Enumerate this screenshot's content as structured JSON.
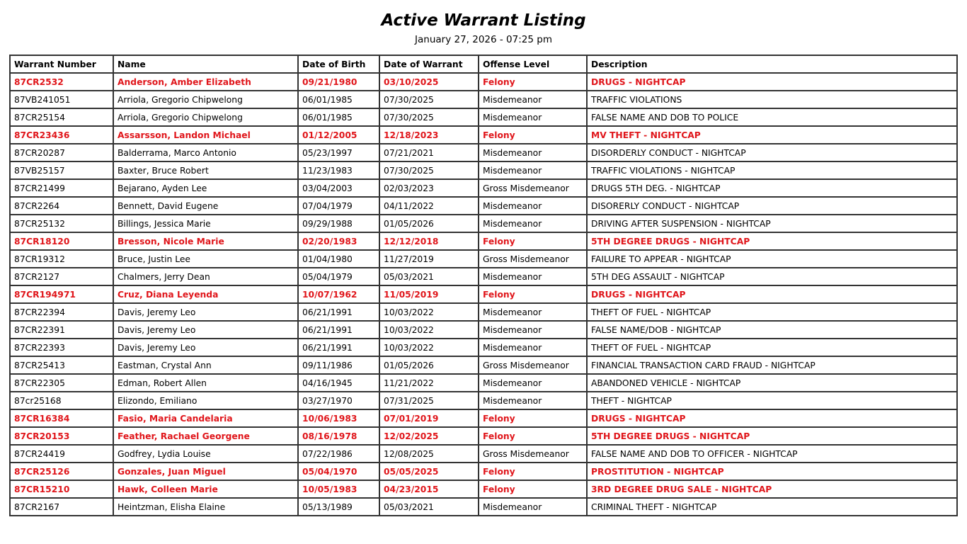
{
  "title": "Active Warrant Listing",
  "subtitle": "January 27, 2026 - 07:25 pm",
  "columns": [
    "Warrant Number",
    "Name",
    "Date of Birth",
    "Date of Warrant",
    "Offense Level",
    "Description"
  ],
  "highlight_color": "#e0161b",
  "rows": [
    [
      "87CR2532",
      "Anderson, Amber Elizabeth",
      "09/21/1980",
      "03/10/2025",
      "Felony",
      "DRUGS - NIGHTCAP"
    ],
    [
      "87VB241051",
      "Arriola, Gregorio Chipwelong",
      "06/01/1985",
      "07/30/2025",
      "Misdemeanor",
      "TRAFFIC VIOLATIONS"
    ],
    [
      "87CR25154",
      "Arriola, Gregorio Chipwelong",
      "06/01/1985",
      "07/30/2025",
      "Misdemeanor",
      "FALSE NAME AND DOB TO POLICE"
    ],
    [
      "87CR23436",
      "Assarsson, Landon Michael",
      "01/12/2005",
      "12/18/2023",
      "Felony",
      "MV THEFT - NIGHTCAP"
    ],
    [
      "87CR20287",
      "Balderrama, Marco Antonio",
      "05/23/1997",
      "07/21/2021",
      "Misdemeanor",
      "DISORDERLY CONDUCT - NIGHTCAP"
    ],
    [
      "87VB25157",
      "Baxter, Bruce Robert",
      "11/23/1983",
      "07/30/2025",
      "Misdemeanor",
      "TRAFFIC VIOLATIONS - NIGHTCAP"
    ],
    [
      "87CR21499",
      "Bejarano, Ayden Lee",
      "03/04/2003",
      "02/03/2023",
      "Gross Misdemeanor",
      "DRUGS 5TH DEG. - NIGHTCAP"
    ],
    [
      "87CR2264",
      "Bennett, David Eugene",
      "07/04/1979",
      "04/11/2022",
      "Misdemeanor",
      "DISORERLY CONDUCT - NIGHTCAP"
    ],
    [
      "87CR25132",
      "Billings, Jessica Marie",
      "09/29/1988",
      "01/05/2026",
      "Misdemeanor",
      "DRIVING AFTER SUSPENSION - NIGHTCAP"
    ],
    [
      "87CR18120",
      "Bresson, Nicole Marie",
      "02/20/1983",
      "12/12/2018",
      "Felony",
      "5TH DEGREE DRUGS - NIGHTCAP"
    ],
    [
      "87CR19312",
      "Bruce, Justin Lee",
      "01/04/1980",
      "11/27/2019",
      "Gross Misdemeanor",
      "FAILURE TO APPEAR - NIGHTCAP"
    ],
    [
      "87CR2127",
      "Chalmers, Jerry Dean",
      "05/04/1979",
      "05/03/2021",
      "Misdemeanor",
      "5TH DEG ASSAULT - NIGHTCAP"
    ],
    [
      "87CR194971",
      "Cruz, Diana Leyenda",
      "10/07/1962",
      "11/05/2019",
      "Felony",
      "DRUGS - NIGHTCAP"
    ],
    [
      "87CR22394",
      "Davis, Jeremy Leo",
      "06/21/1991",
      "10/03/2022",
      "Misdemeanor",
      "THEFT OF FUEL - NIGHTCAP"
    ],
    [
      "87CR22391",
      "Davis, Jeremy Leo",
      "06/21/1991",
      "10/03/2022",
      "Misdemeanor",
      "FALSE NAME/DOB - NIGHTCAP"
    ],
    [
      "87CR22393",
      "Davis, Jeremy Leo",
      "06/21/1991",
      "10/03/2022",
      "Misdemeanor",
      "THEFT OF FUEL - NIGHTCAP"
    ],
    [
      "87CR25413",
      "Eastman, Crystal Ann",
      "09/11/1986",
      "01/05/2026",
      "Gross Misdemeanor",
      "FINANCIAL TRANSACTION CARD FRAUD - NIGHTCAP"
    ],
    [
      "87CR22305",
      "Edman, Robert Allen",
      "04/16/1945",
      "11/21/2022",
      "Misdemeanor",
      "ABANDONED VEHICLE - NIGHTCAP"
    ],
    [
      "87cr25168",
      "Elizondo, Emiliano",
      "03/27/1970",
      "07/31/2025",
      "Misdemeanor",
      "THEFT - NIGHTCAP"
    ],
    [
      "87CR16384",
      "Fasio, Maria Candelaria",
      "10/06/1983",
      "07/01/2019",
      "Felony",
      "DRUGS - NIGHTCAP"
    ],
    [
      "87CR20153",
      "Feather, Rachael Georgene",
      "08/16/1978",
      "12/02/2025",
      "Felony",
      "5TH DEGREE DRUGS - NIGHTCAP"
    ],
    [
      "87CR24419",
      "Godfrey, Lydia Louise",
      "07/22/1986",
      "12/08/2025",
      "Gross Misdemeanor",
      "FALSE NAME AND DOB TO OFFICER - NIGHTCAP"
    ],
    [
      "87CR25126",
      "Gonzales, Juan Miguel",
      "05/04/1970",
      "05/05/2025",
      "Felony",
      "PROSTITUTION - NIGHTCAP"
    ],
    [
      "87CR15210",
      "Hawk, Colleen Marie",
      "10/05/1983",
      "04/23/2015",
      "Felony",
      "3RD DEGREE DRUG SALE - NIGHTCAP"
    ],
    [
      "87CR2167",
      "Heintzman, Elisha Elaine",
      "05/13/1989",
      "05/03/2021",
      "Misdemeanor",
      "CRIMINAL THEFT - NIGHTCAP"
    ]
  ]
}
